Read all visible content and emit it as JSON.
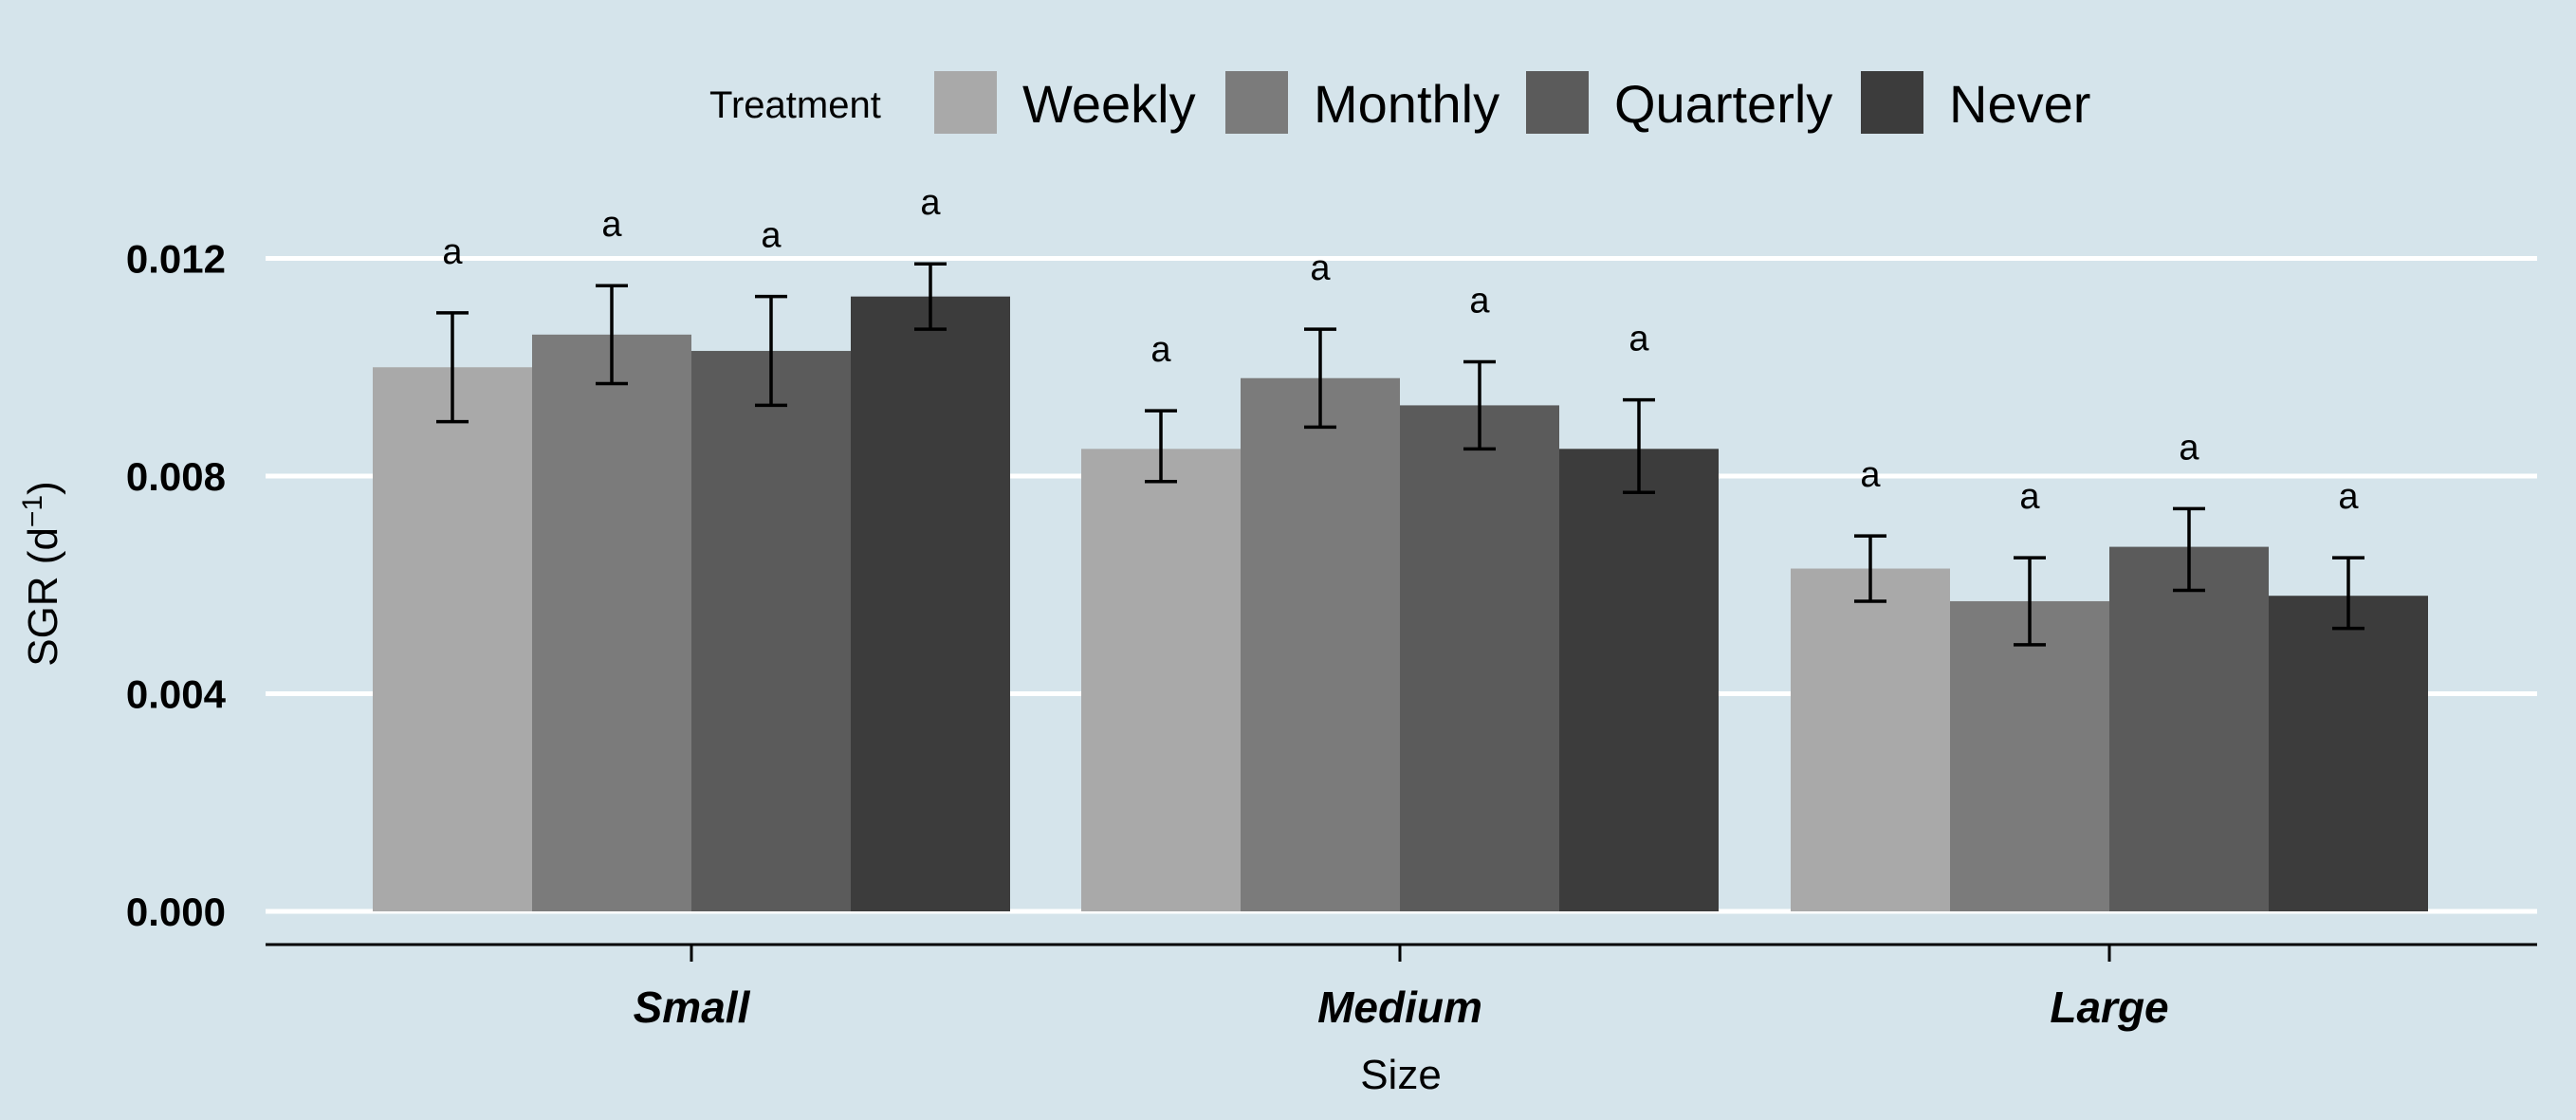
{
  "chart_data": {
    "type": "bar",
    "xlabel": "Size",
    "ylabel": "SGR (d",
    "ylabel_sup": "−1",
    "ylabel_close": ")",
    "ylim": [
      0,
      0.0125
    ],
    "yticks": [
      "0.000",
      "0.004",
      "0.008",
      "0.012"
    ],
    "ytick_values": [
      0,
      0.004,
      0.008,
      0.012
    ],
    "grid": "horizontal major, white",
    "legend_title": "Treatment",
    "legend_position": "top",
    "categories": [
      "Small",
      "Medium",
      "Large"
    ],
    "series": [
      {
        "name": "Weekly",
        "color": "#a9a9a9",
        "values": [
          0.01,
          0.0085,
          0.0063
        ],
        "err_low": [
          0.009,
          0.0079,
          0.0057
        ],
        "err_high": [
          0.011,
          0.0092,
          0.0069
        ],
        "labels": [
          "a",
          "a",
          "a"
        ]
      },
      {
        "name": "Monthly",
        "color": "#7b7b7b",
        "values": [
          0.0106,
          0.0098,
          0.0057
        ],
        "err_low": [
          0.0097,
          0.0089,
          0.0049
        ],
        "err_high": [
          0.0115,
          0.0107,
          0.0065
        ],
        "labels": [
          "a",
          "a",
          "a"
        ]
      },
      {
        "name": "Quarterly",
        "color": "#5b5b5b",
        "values": [
          0.0103,
          0.0093,
          0.0067
        ],
        "err_low": [
          0.0093,
          0.0085,
          0.0059
        ],
        "err_high": [
          0.0113,
          0.0101,
          0.0074
        ],
        "labels": [
          "a",
          "a",
          "a"
        ]
      },
      {
        "name": "Never",
        "color": "#3c3c3c",
        "values": [
          0.0113,
          0.0085,
          0.0058
        ],
        "err_low": [
          0.0107,
          0.0077,
          0.0052
        ],
        "err_high": [
          0.0119,
          0.0094,
          0.0065
        ],
        "labels": [
          "a",
          "a",
          "a"
        ]
      }
    ]
  }
}
